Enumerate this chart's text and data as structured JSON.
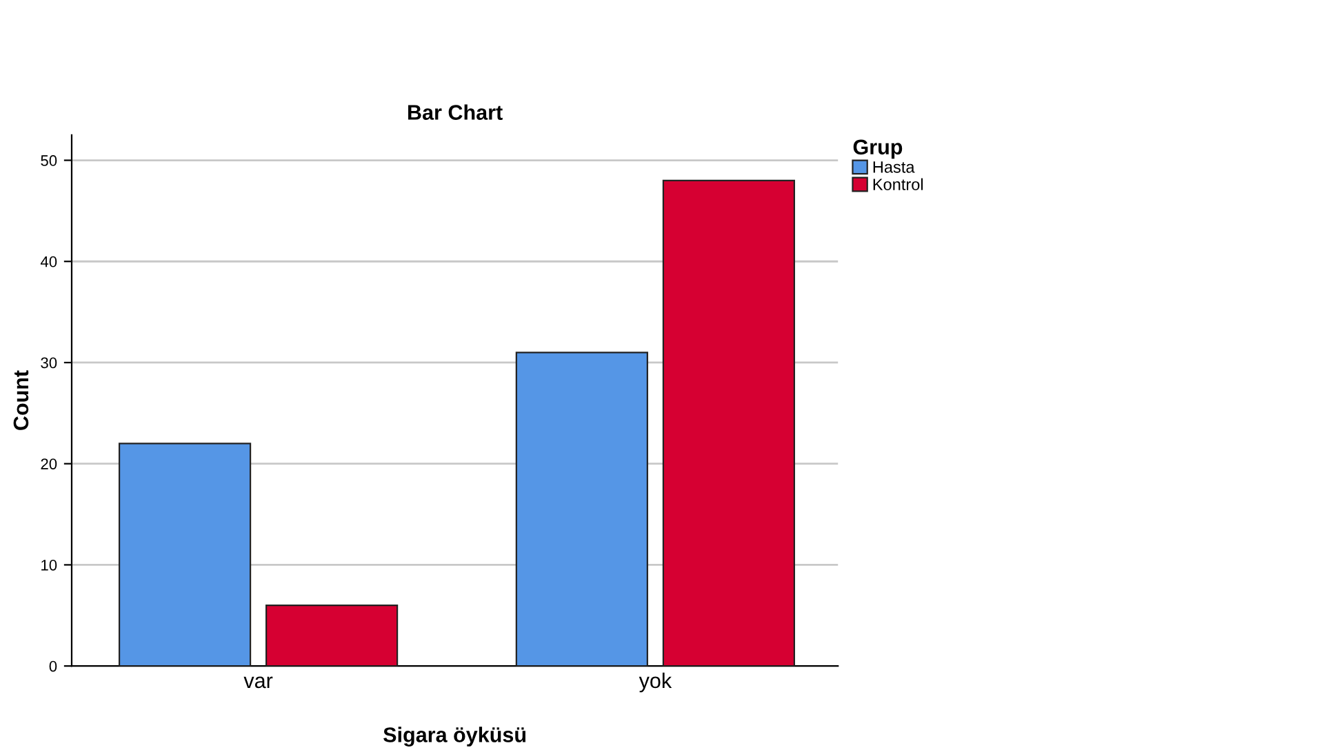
{
  "chart_data": {
    "type": "bar",
    "title": "Bar Chart",
    "xlabel": "Sigara öyküsü",
    "ylabel": "Count",
    "legend_title": "Grup",
    "categories": [
      "var",
      "yok"
    ],
    "series": [
      {
        "name": "Hasta",
        "color": "#5596e6",
        "values": [
          22,
          31
        ]
      },
      {
        "name": "Kontrol",
        "color": "#d60032",
        "values": [
          6,
          48
        ]
      }
    ],
    "ylim": [
      0,
      52.5
    ],
    "yticks": [
      0,
      10,
      20,
      30,
      40,
      50
    ],
    "grid": "y",
    "legend": "top right"
  }
}
